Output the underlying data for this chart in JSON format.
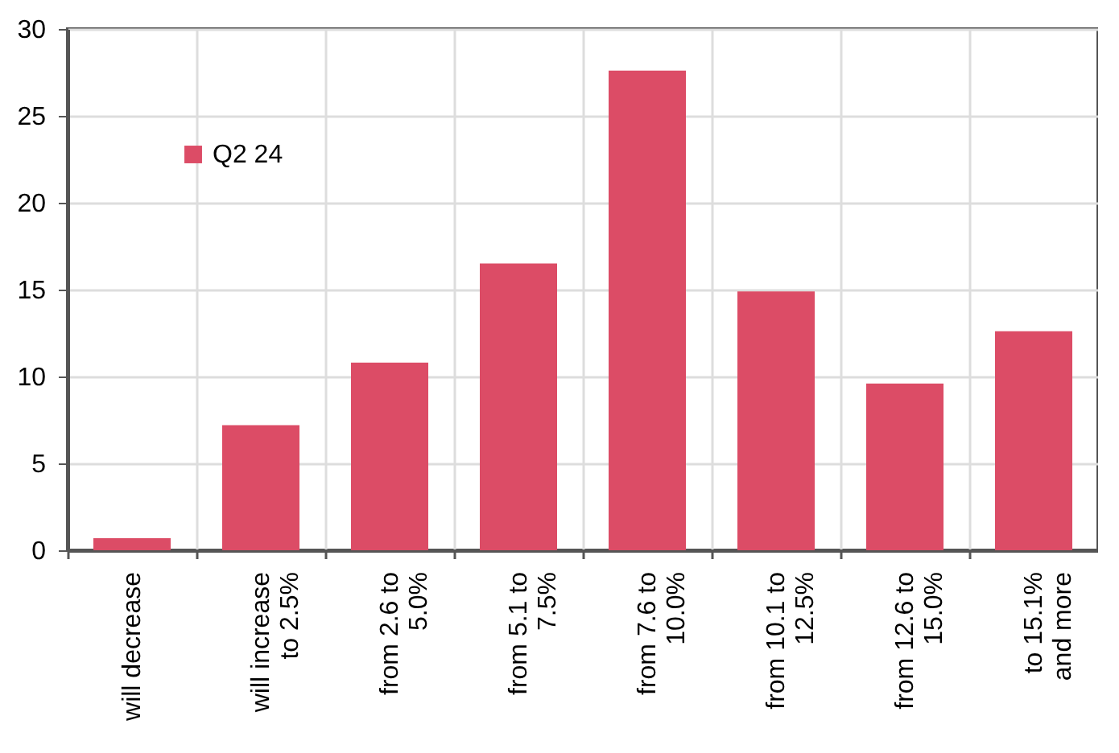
{
  "chart_data": {
    "type": "bar",
    "categories": [
      "will decrease",
      "will increase to 2.5%",
      "from 2.6 to 5.0%",
      "from 5.1 to 7.5%",
      "from 7.6 to 10.0%",
      "from 10.1 to 12.5%",
      "from 12.6 to 15.0%",
      "to 15.1% and more"
    ],
    "series": [
      {
        "name": "Q2 24",
        "color": "#dc4c66",
        "values": [
          0.7,
          7.2,
          10.8,
          16.5,
          27.6,
          14.9,
          9.6,
          12.6
        ]
      }
    ],
    "ylim": [
      0,
      30
    ],
    "yticks": [
      0,
      5,
      10,
      15,
      20,
      25,
      30
    ],
    "grid": true,
    "legend": "top left"
  }
}
